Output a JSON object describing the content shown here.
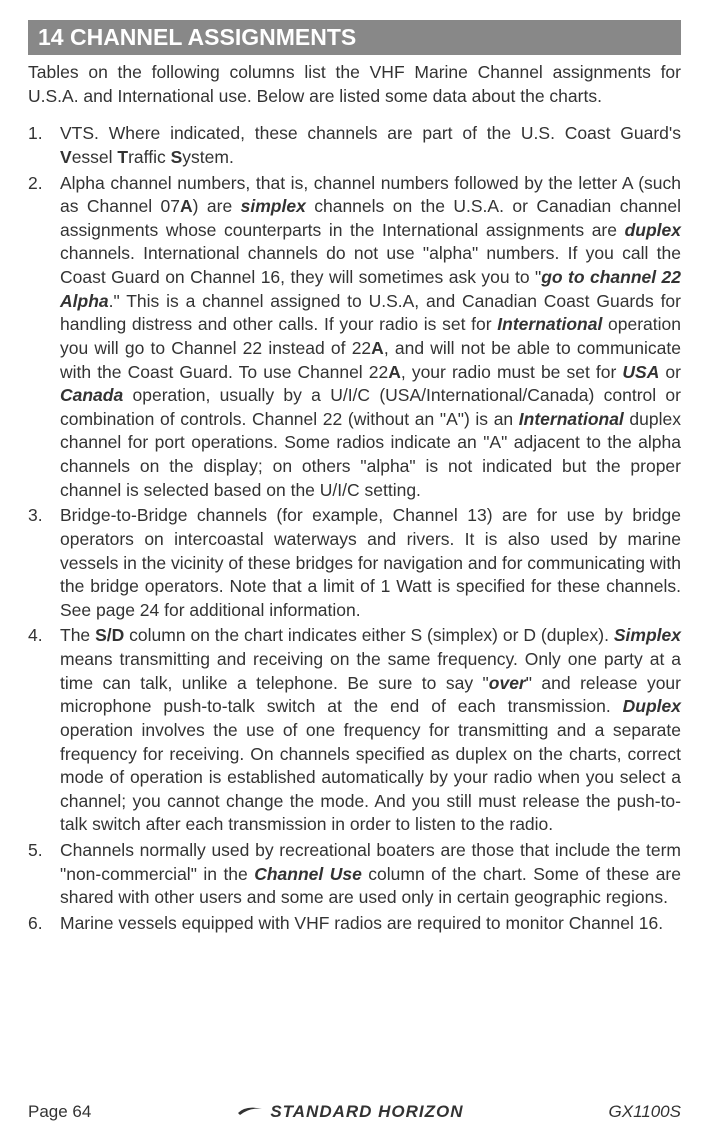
{
  "header": {
    "title": "14  CHANNEL ASSIGNMENTS",
    "bg_color": "#888888",
    "text_color": "#ffffff",
    "fontsize": 23
  },
  "intro": {
    "text": "Tables on the following columns list the VHF Marine Channel assignments for U.S.A. and International use. Below are listed some data about the charts."
  },
  "items": [
    {
      "number": "1.",
      "parts": [
        {
          "text": "VTS. Where indicated, these channels are part of the U.S. Coast Guard's "
        },
        {
          "text": "V",
          "style": "bold"
        },
        {
          "text": "essel "
        },
        {
          "text": "T",
          "style": "bold"
        },
        {
          "text": "raffic "
        },
        {
          "text": "S",
          "style": "bold"
        },
        {
          "text": "ystem."
        }
      ]
    },
    {
      "number": "2.",
      "parts": [
        {
          "text": "Alpha channel numbers, that is, channel numbers followed by the letter A (such as Channel 07"
        },
        {
          "text": "A",
          "style": "bold"
        },
        {
          "text": ") are "
        },
        {
          "text": "simplex",
          "style": "bold-italic"
        },
        {
          "text": " channels on the U.S.A. or Canadian channel assignments whose counterparts in the International assignments are "
        },
        {
          "text": "duplex",
          "style": "bold-italic"
        },
        {
          "text": " channels. International channels do not use \"alpha\" numbers. If you call the Coast Guard on Channel 16, they will sometimes ask you to \""
        },
        {
          "text": "go to channel 22 Alpha",
          "style": "bold-italic"
        },
        {
          "text": ".\" This is a channel assigned to U.S.A, and Canadian Coast Guards for handling distress and other calls. If your radio is set for "
        },
        {
          "text": "International",
          "style": "bold-italic"
        },
        {
          "text": " operation you will go to Channel 22 instead of 22"
        },
        {
          "text": "A",
          "style": "bold"
        },
        {
          "text": ", and will not be able to communicate with the Coast Guard. To use Channel 22"
        },
        {
          "text": "A",
          "style": "bold"
        },
        {
          "text": ", your radio must be set for "
        },
        {
          "text": "USA",
          "style": "bold-italic"
        },
        {
          "text": " or "
        },
        {
          "text": "Canada",
          "style": "bold-italic"
        },
        {
          "text": " operation, usually by a U/I/C (USA/International/Canada) control or combination of controls. Channel 22 (without an \"A\") is an "
        },
        {
          "text": "International",
          "style": "bold-italic"
        },
        {
          "text": " duplex channel for port operations. Some radios indicate an \"A\" adjacent to the alpha channels on the display; on others \"alpha\" is not indicated but the proper channel is selected based on the U/I/C setting."
        }
      ]
    },
    {
      "number": "3.",
      "parts": [
        {
          "text": "Bridge-to-Bridge channels (for example, Channel 13) are for use by bridge operators on intercoastal waterways and rivers. It is also used by marine vessels in the vicinity of these bridges for navigation and for communicating with the bridge operators. Note that a limit of 1 Watt is specified for these channels. See page 24 for additional information."
        }
      ]
    },
    {
      "number": "4.",
      "parts": [
        {
          "text": "The "
        },
        {
          "text": "S/D",
          "style": "bold"
        },
        {
          "text": " column on the chart indicates either S (simplex) or D (duplex). "
        },
        {
          "text": "Simplex",
          "style": "bold-italic"
        },
        {
          "text": " means transmitting and receiving on the same frequency. Only one party at a time can talk, unlike a telephone. Be sure to say \""
        },
        {
          "text": "over",
          "style": "bold-italic"
        },
        {
          "text": "\" and release your microphone push-to-talk switch at the end of each transmission. "
        },
        {
          "text": "Duplex",
          "style": "bold-italic"
        },
        {
          "text": " operation involves the use of one frequency for transmitting and a separate frequency for receiving. On channels specified as duplex on the charts, correct mode of operation is established automatically by your radio when you select a channel; you cannot change the mode. And you still must release the push-to-talk switch after each transmission in order to listen to the radio."
        }
      ]
    },
    {
      "number": "5.",
      "parts": [
        {
          "text": "Channels normally used by recreational boaters are those that include the term \"non-commercial\" in the "
        },
        {
          "text": "Channel Use",
          "style": "bold-italic"
        },
        {
          "text": " column of the chart. Some of these are shared with other users and some are used only in certain geographic regions."
        }
      ]
    },
    {
      "number": "6.",
      "parts": [
        {
          "text": "Marine vessels equipped with VHF radios are required to monitor Channel 16."
        }
      ]
    }
  ],
  "footer": {
    "page_label": "Page 64",
    "brand_text": "STANDARD HORIZON",
    "model": "GX1100S"
  },
  "typography": {
    "body_fontsize": 17.5,
    "line_height": 1.35,
    "text_color": "#333333"
  }
}
